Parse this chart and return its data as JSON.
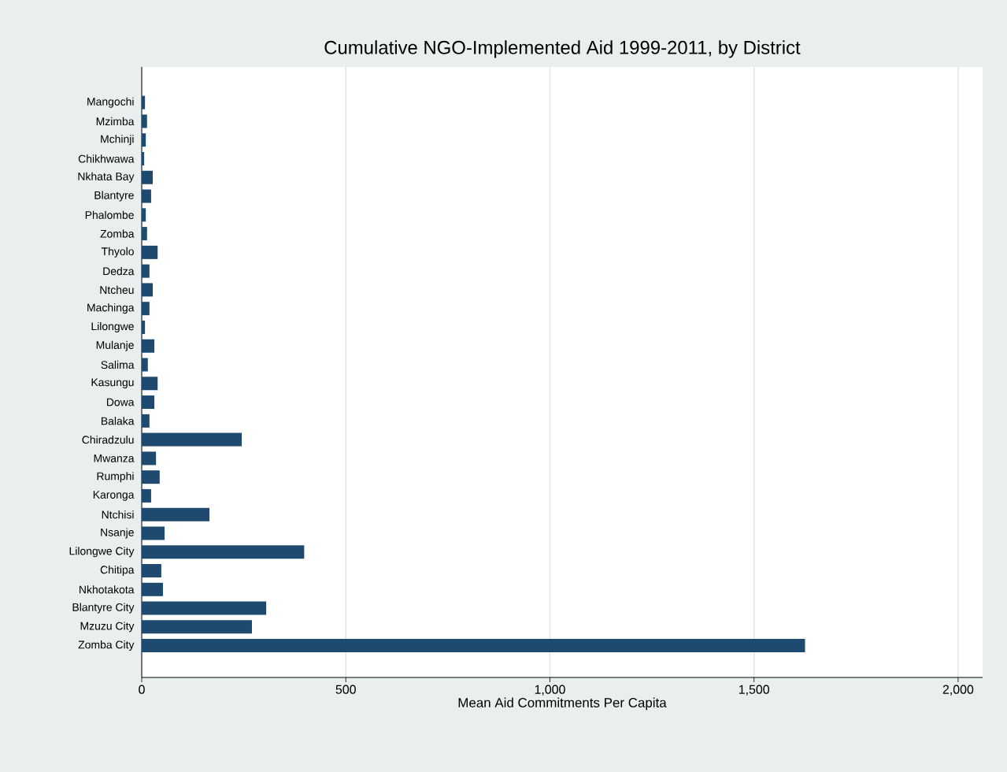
{
  "chart_data": {
    "type": "bar",
    "orientation": "horizontal",
    "title": "Cumulative NGO-Implemented Aid 1999-2011, by District",
    "xlabel": "Mean Aid Commitments Per Capita",
    "categories": [
      "Mangochi",
      "Mzimba",
      "Mchinji",
      "Chikhwawa",
      "Nkhata Bay",
      "Blantyre",
      "Phalombe",
      "Zomba",
      "Thyolo",
      "Dedza",
      "Ntcheu",
      "Machinga",
      "Lilongwe",
      "Mulanje",
      "Salima",
      "Kasungu",
      "Dowa",
      "Balaka",
      "Chiradzulu",
      "Mwanza",
      "Rumphi",
      "Karonga",
      "Ntchisi",
      "Nsanje",
      "Lilongwe City",
      "Chitipa",
      "Nkhotakota",
      "Blantyre City",
      "Mzuzu City",
      "Zomba City"
    ],
    "values": [
      8,
      13,
      10,
      6,
      27,
      23,
      10,
      13,
      39,
      19,
      27,
      19,
      8,
      31,
      15,
      39,
      31,
      19,
      245,
      35,
      44,
      23,
      166,
      56,
      398,
      48,
      52,
      305,
      270,
      1625
    ],
    "color": "#1f4a70",
    "xlim": [
      0,
      2060
    ],
    "xticks": [
      0,
      500,
      {
        "value": 1000,
        "label": "1,000"
      },
      {
        "value": 1500,
        "label": "1,500"
      },
      {
        "value": 2000,
        "label": "2,000"
      }
    ],
    "grid": "x"
  }
}
